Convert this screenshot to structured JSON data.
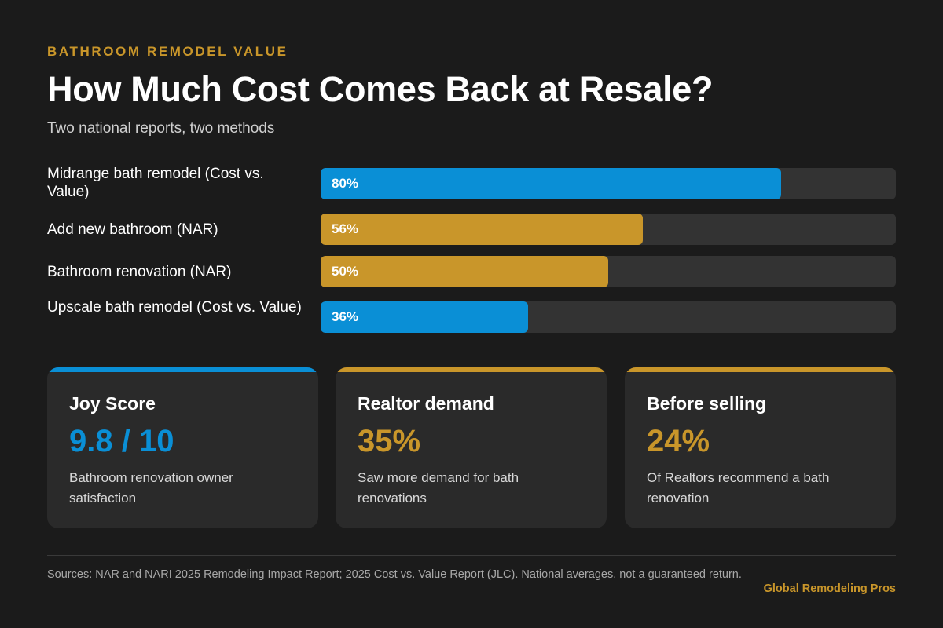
{
  "header": {
    "eyebrow": "BATHROOM REMODEL VALUE",
    "title": "How Much Cost Comes Back at Resale?",
    "subtitle": "Two national reports, two methods"
  },
  "colors": {
    "blue": "#0a8fd6",
    "gold": "#c9962a",
    "track": "#333333"
  },
  "chart_data": {
    "type": "bar",
    "orientation": "horizontal",
    "categories": [
      "Midrange bath remodel (Cost vs. Value)",
      "Add new bathroom (NAR)",
      "Bathroom renovation (NAR)",
      "Upscale bath remodel (Cost vs. Value)"
    ],
    "values": [
      80,
      56,
      50,
      36
    ],
    "value_labels": [
      "80%",
      "56%",
      "50%",
      "36%"
    ],
    "bar_colors": [
      "#0a8fd6",
      "#c9962a",
      "#c9962a",
      "#0a8fd6"
    ],
    "xlim": [
      0,
      100
    ],
    "grid": false
  },
  "cards": [
    {
      "title": "Joy Score",
      "value": "9.8 / 10",
      "description": "Bathroom renovation owner satisfaction",
      "accent": "#0a8fd6"
    },
    {
      "title": "Realtor demand",
      "value": "35%",
      "description": "Saw more demand for bath renovations",
      "accent": "#c9962a"
    },
    {
      "title": "Before selling",
      "value": "24%",
      "description": "Of Realtors recommend a bath renovation",
      "accent": "#c9962a"
    }
  ],
  "footer": {
    "sources": "Sources: NAR and NARI 2025 Remodeling Impact Report; 2025 Cost vs. Value Report (JLC). National averages, not a guaranteed return.",
    "brand": "Global Remodeling Pros"
  }
}
